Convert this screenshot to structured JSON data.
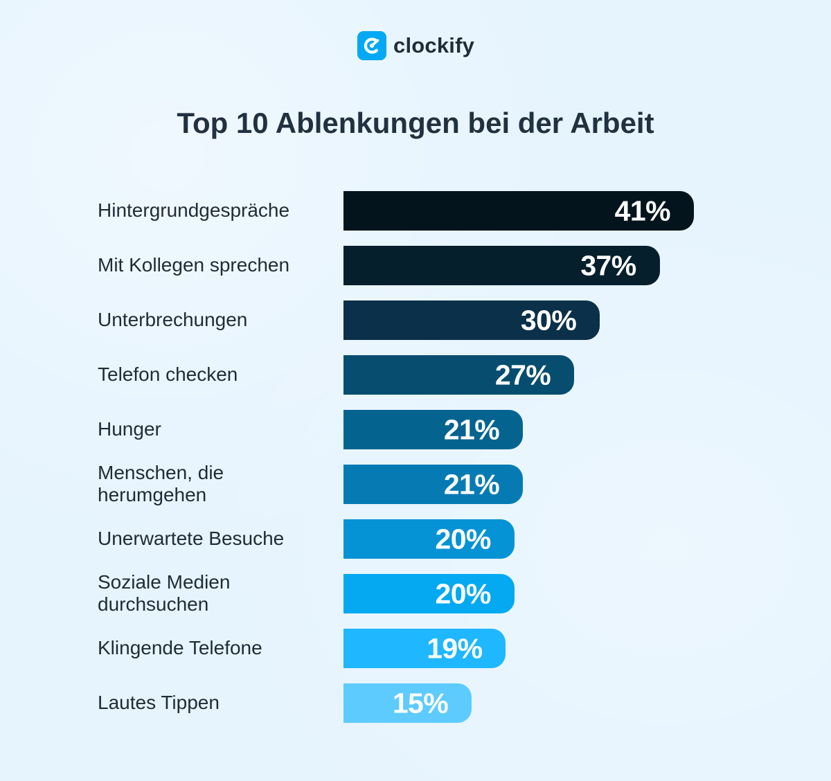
{
  "brand": {
    "name": "clockify",
    "logo_icon": "clockify-logo-icon",
    "accent": "#03a9f4"
  },
  "chart_data": {
    "type": "bar",
    "title": "Top 10 Ablenkungen bei der Arbeit",
    "orientation": "horizontal",
    "categories": [
      "Hintergrundgespräche",
      "Mit Kollegen sprechen",
      "Unterbrechungen",
      "Telefon checken",
      "Hunger",
      "Menschen, die herumgehen",
      "Unerwartete Besuche",
      "Soziale Medien durchsuchen",
      "Klingende Telefone",
      "Lautes Tippen"
    ],
    "values": [
      41,
      37,
      30,
      27,
      21,
      21,
      20,
      20,
      19,
      15
    ],
    "value_labels": [
      "41%",
      "37%",
      "30%",
      "27%",
      "21%",
      "21%",
      "20%",
      "20%",
      "19%",
      "15%"
    ],
    "colors": [
      "#04141c",
      "#061f2d",
      "#0b3049",
      "#064d6f",
      "#05648f",
      "#067bb3",
      "#0593d6",
      "#04a9f2",
      "#1fb7ff",
      "#5ecbff"
    ],
    "grid": false,
    "legend": "none"
  }
}
